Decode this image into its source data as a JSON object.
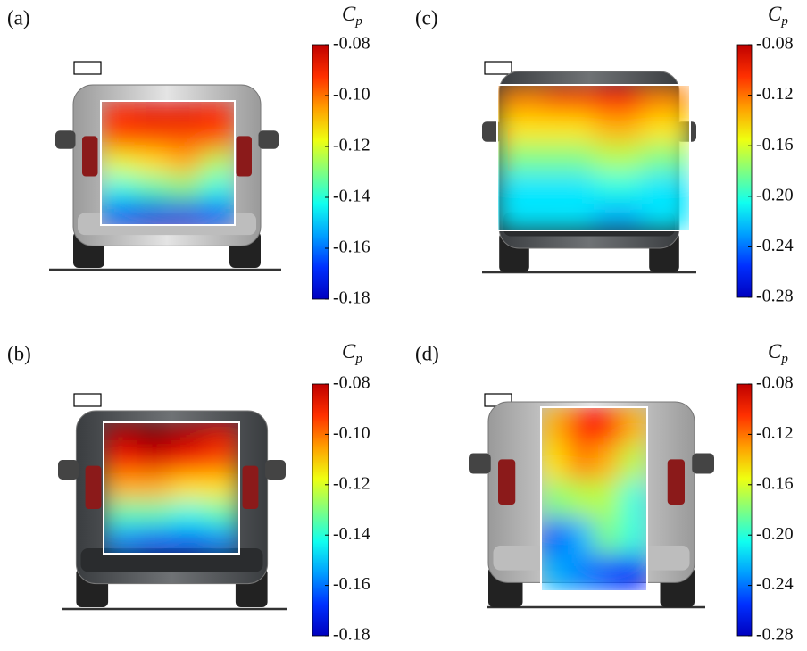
{
  "chart_data": [
    {
      "type": "heatmap",
      "label": "(a)",
      "colorbar_label": {
        "base": "C",
        "sub": "p"
      },
      "colormap": "jet",
      "values": [
        [
          -0.095,
          -0.09,
          -0.09,
          -0.095
        ],
        [
          -0.1,
          -0.1,
          -0.1,
          -0.1
        ],
        [
          -0.12,
          -0.115,
          -0.11,
          -0.125
        ],
        [
          -0.14,
          -0.135,
          -0.13,
          -0.14
        ],
        [
          -0.16,
          -0.17,
          -0.17,
          -0.16
        ]
      ],
      "clim": [
        -0.18,
        -0.08
      ],
      "cticks": [
        -0.08,
        {
          "value": -0.1,
          "label": "-0.10"
        },
        -0.12,
        -0.14,
        -0.16,
        -0.18
      ]
    },
    {
      "type": "heatmap",
      "label": "(c)",
      "colorbar_label": {
        "base": "C",
        "sub": "p"
      },
      "colormap": "jet",
      "values": [
        [
          -0.13,
          -0.12,
          -0.11,
          -0.13
        ],
        [
          -0.15,
          -0.15,
          -0.14,
          -0.15
        ],
        [
          -0.18,
          -0.18,
          -0.17,
          -0.18
        ],
        [
          -0.21,
          -0.21,
          -0.2,
          -0.21
        ],
        [
          -0.21,
          -0.21,
          -0.22,
          -0.21
        ]
      ],
      "clim": [
        -0.28,
        -0.08
      ],
      "cticks": [
        -0.08,
        -0.12,
        -0.16,
        {
          "value": -0.2,
          "label": "-0.20"
        },
        -0.24,
        -0.28
      ]
    },
    {
      "type": "heatmap",
      "label": "(b)",
      "colorbar_label": {
        "base": "C",
        "sub": "p"
      },
      "colormap": "jet",
      "values": [
        [
          -0.085,
          -0.08,
          -0.085,
          -0.09
        ],
        [
          -0.095,
          -0.09,
          -0.095,
          -0.1
        ],
        [
          -0.11,
          -0.11,
          -0.115,
          -0.115
        ],
        [
          -0.135,
          -0.135,
          -0.14,
          -0.135
        ],
        [
          -0.155,
          -0.16,
          -0.16,
          -0.155
        ]
      ],
      "clim": [
        -0.18,
        -0.08
      ],
      "cticks": [
        -0.08,
        {
          "value": -0.1,
          "label": "-0.10"
        },
        -0.12,
        -0.14,
        -0.16,
        -0.18
      ]
    },
    {
      "type": "heatmap",
      "label": "(d)",
      "colorbar_label": {
        "base": "C",
        "sub": "p"
      },
      "colormap": "jet",
      "values": [
        [
          -0.14,
          -0.11,
          -0.11,
          -0.14
        ],
        [
          -0.15,
          -0.13,
          -0.14,
          -0.17
        ],
        [
          -0.18,
          -0.17,
          -0.17,
          -0.2
        ],
        [
          -0.24,
          -0.22,
          -0.18,
          -0.2
        ],
        [
          -0.22,
          -0.23,
          -0.24,
          -0.25
        ]
      ],
      "clim": [
        -0.28,
        -0.08
      ],
      "cticks": [
        -0.08,
        -0.12,
        -0.16,
        {
          "value": -0.2,
          "label": "-0.20"
        },
        -0.24,
        -0.28
      ]
    }
  ]
}
